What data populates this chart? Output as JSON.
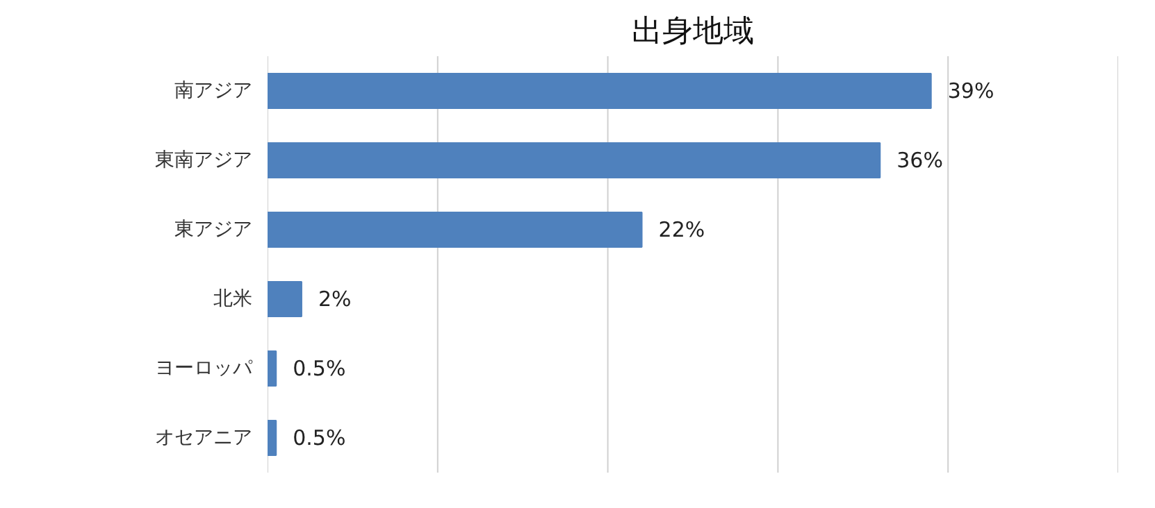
{
  "chart_data": {
    "type": "bar",
    "orientation": "horizontal",
    "title": "出身地域",
    "categories": [
      "南アジア",
      "東南アジア",
      "東アジア",
      "北米",
      "ヨーロッパ",
      "オセアニア"
    ],
    "values": [
      39,
      36,
      22,
      2,
      0.5,
      0.5
    ],
    "value_labels": [
      "39%",
      "36%",
      "22%",
      "2%",
      "0.5%",
      "0.5%"
    ],
    "color": "#4f81bd",
    "xlim": [
      0,
      50
    ],
    "xticks": [
      {
        "value": 0,
        "label": null
      },
      {
        "value": 10,
        "label": null
      },
      {
        "value": 20,
        "label": null
      },
      {
        "value": 30,
        "label": null
      },
      {
        "value": 40,
        "label": null
      },
      {
        "value": 50,
        "label": null
      }
    ],
    "tick_labels": "y",
    "grid": "x"
  }
}
